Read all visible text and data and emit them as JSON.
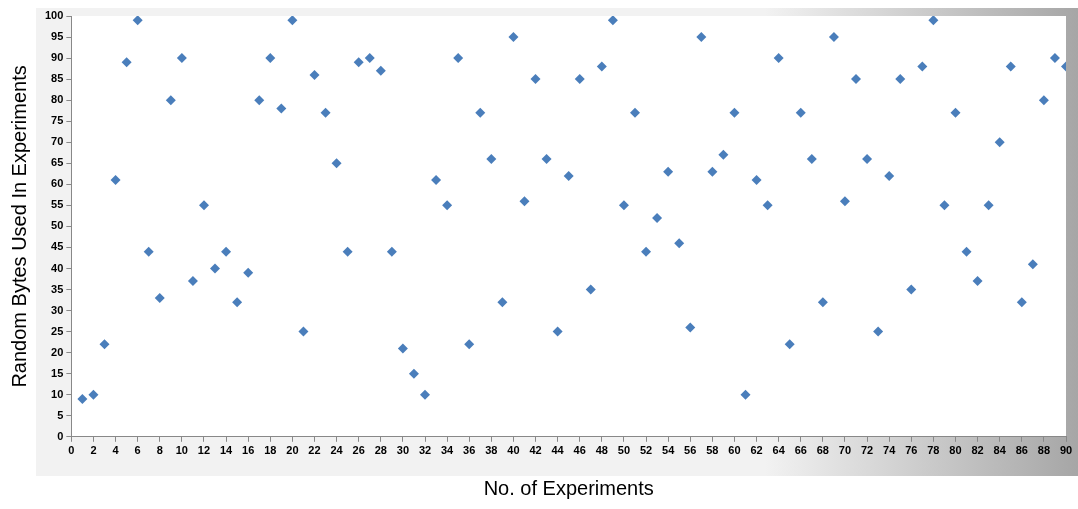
{
  "chart_data": {
    "type": "scatter",
    "xlabel": "No. of Experiments",
    "ylabel": "Random Bytes Used In Experiments",
    "x": [
      1,
      2,
      3,
      4,
      5,
      6,
      7,
      8,
      9,
      10,
      11,
      12,
      13,
      14,
      15,
      16,
      17,
      18,
      19,
      20,
      21,
      22,
      23,
      24,
      25,
      26,
      27,
      28,
      29,
      30,
      31,
      32,
      33,
      34,
      35,
      36,
      37,
      38,
      39,
      40,
      41,
      42,
      43,
      44,
      45,
      46,
      47,
      48,
      49,
      50,
      51,
      52,
      53,
      54,
      55,
      56,
      57,
      58,
      59,
      60,
      61,
      62,
      63,
      64,
      65,
      66,
      67,
      68,
      69,
      70,
      71,
      72,
      73,
      74,
      75,
      76,
      77,
      78,
      79,
      80,
      81,
      82,
      83,
      84,
      85,
      86,
      87,
      88,
      89,
      90
    ],
    "series": [
      {
        "color": "#4a7ebb",
        "values": [
          9,
          10,
          22,
          61,
          89,
          99,
          44,
          33,
          80,
          90,
          37,
          55,
          40,
          44,
          32,
          39,
          80,
          90,
          78,
          99,
          25,
          86,
          77,
          65,
          44,
          89,
          90,
          87,
          44,
          21,
          15,
          10,
          61,
          55,
          90,
          22,
          77,
          66,
          32,
          95,
          56,
          85,
          66,
          25,
          62,
          85,
          35,
          88,
          99,
          55,
          77,
          44,
          52,
          63,
          46,
          26,
          95,
          63,
          67,
          77,
          10,
          61,
          55,
          90,
          22,
          77,
          66,
          32,
          95,
          56,
          85,
          66,
          25,
          62,
          85,
          35,
          88,
          99,
          55,
          77,
          44,
          37,
          55,
          70,
          88,
          32,
          41,
          80,
          90,
          88
        ]
      }
    ],
    "xlim": [
      0,
      90
    ],
    "xticks": [
      0,
      2,
      4,
      6,
      8,
      10,
      12,
      14,
      16,
      18,
      20,
      22,
      24,
      26,
      28,
      30,
      32,
      34,
      36,
      38,
      40,
      42,
      44,
      46,
      48,
      50,
      52,
      54,
      56,
      58,
      60,
      62,
      64,
      66,
      68,
      70,
      72,
      74,
      76,
      78,
      80,
      82,
      84,
      86,
      88,
      90
    ],
    "ylim": [
      0,
      100
    ],
    "yticks": [
      0,
      5,
      10,
      15,
      20,
      25,
      30,
      35,
      40,
      45,
      50,
      55,
      60,
      65,
      70,
      75,
      80,
      85,
      90,
      95,
      100
    ],
    "grid": false,
    "legend": false,
    "marker": "diamond"
  }
}
